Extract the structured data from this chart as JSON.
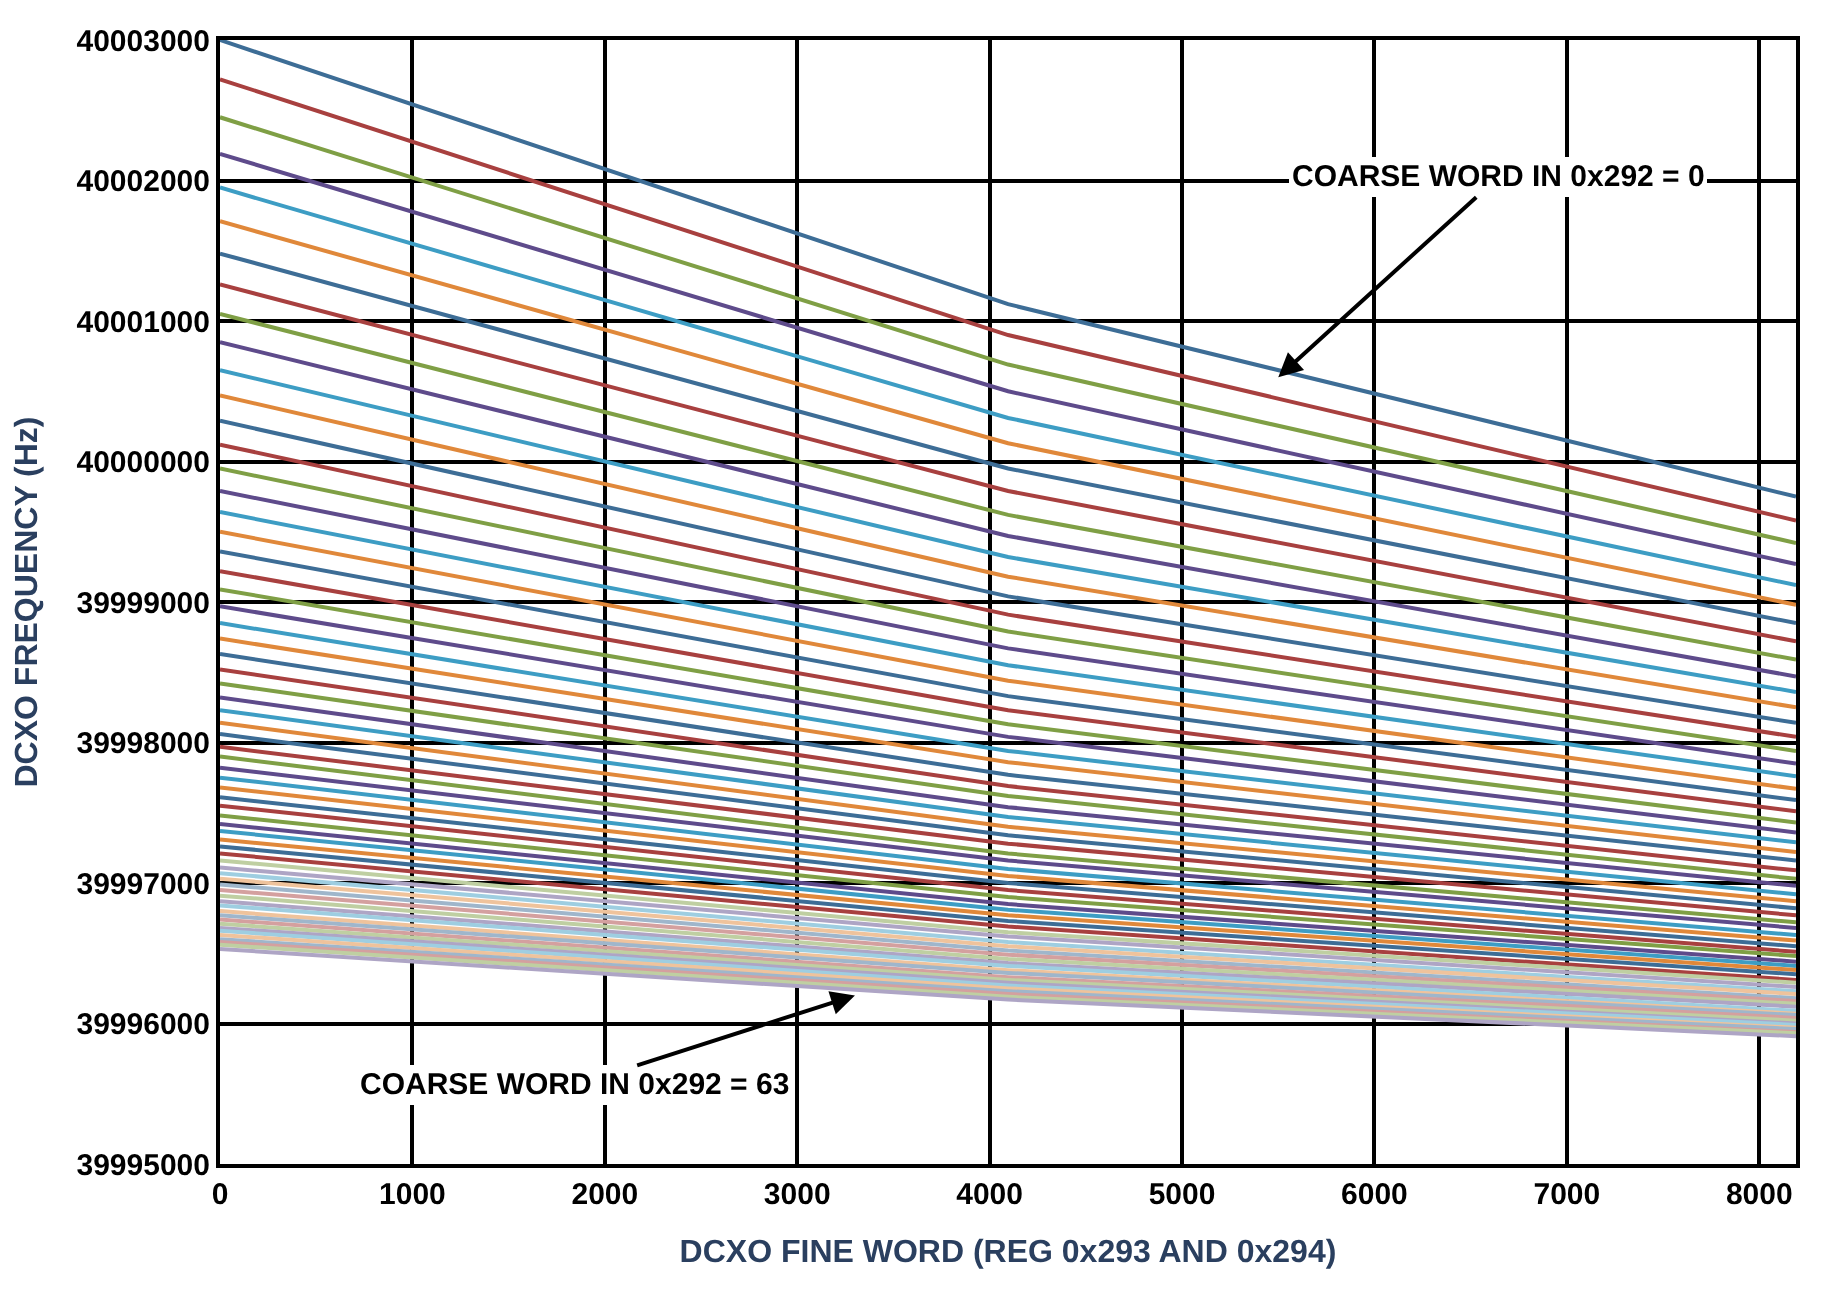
{
  "chart_data": {
    "type": "line",
    "xlabel": "DCXO FINE WORD (REG 0x293 AND 0x294)",
    "ylabel": "DCXO FREQUENCY (Hz)",
    "x": [
      0,
      4096,
      8191
    ],
    "xlim": [
      0,
      8191
    ],
    "xticks": [
      0,
      1000,
      2000,
      3000,
      4000,
      5000,
      6000,
      7000,
      8000
    ],
    "ylim": [
      39995000,
      40003000
    ],
    "yticks": [
      39995000,
      39996000,
      39997000,
      39998000,
      39999000,
      40000000,
      40001000,
      40002000,
      40003000
    ],
    "grid": true,
    "legend": false,
    "marker": "none",
    "line_style": "solid",
    "annotations": [
      {
        "text": "COARSE WORD IN 0x292 = 0",
        "x": 5500,
        "y": 40000600
      },
      {
        "text": "COARSE WORD IN 0x292 = 63",
        "x": 3300,
        "y": 39996200
      }
    ],
    "series": [
      {
        "color": "#3d6d96",
        "values": [
          40003000,
          40001120,
          39999750
        ]
      },
      {
        "color": "#a8403f",
        "values": [
          40002720,
          40000900,
          39999580
        ]
      },
      {
        "color": "#7f9f45",
        "values": [
          40002450,
          40000690,
          39999420
        ]
      },
      {
        "color": "#5e4b8b",
        "values": [
          40002190,
          40000500,
          39999270
        ]
      },
      {
        "color": "#3d9dc4",
        "values": [
          40001950,
          40000310,
          39999120
        ]
      },
      {
        "color": "#e0883a",
        "values": [
          40001710,
          40000130,
          39998980
        ]
      },
      {
        "color": "#3d6d96",
        "values": [
          40001480,
          39999950,
          39998850
        ]
      },
      {
        "color": "#a8403f",
        "values": [
          40001260,
          39999790,
          39998720
        ]
      },
      {
        "color": "#7f9f45",
        "values": [
          40001050,
          39999620,
          39998590
        ]
      },
      {
        "color": "#5e4b8b",
        "values": [
          40000850,
          39999470,
          39998470
        ]
      },
      {
        "color": "#3d9dc4",
        "values": [
          40000650,
          39999320,
          39998360
        ]
      },
      {
        "color": "#e0883a",
        "values": [
          40000470,
          39999180,
          39998250
        ]
      },
      {
        "color": "#3d6d96",
        "values": [
          40000290,
          39999040,
          39998140
        ]
      },
      {
        "color": "#a8403f",
        "values": [
          40000120,
          39998910,
          39998040
        ]
      },
      {
        "color": "#7f9f45",
        "values": [
          39999950,
          39998790,
          39997940
        ]
      },
      {
        "color": "#5e4b8b",
        "values": [
          39999790,
          39998670,
          39997850
        ]
      },
      {
        "color": "#3d9dc4",
        "values": [
          39999640,
          39998550,
          39997760
        ]
      },
      {
        "color": "#e0883a",
        "values": [
          39999500,
          39998440,
          39997670
        ]
      },
      {
        "color": "#3d6d96",
        "values": [
          39999360,
          39998330,
          39997590
        ]
      },
      {
        "color": "#a8403f",
        "values": [
          39999220,
          39998230,
          39997510
        ]
      },
      {
        "color": "#7f9f45",
        "values": [
          39999090,
          39998130,
          39997430
        ]
      },
      {
        "color": "#5e4b8b",
        "values": [
          39998970,
          39998040,
          39997360
        ]
      },
      {
        "color": "#3d9dc4",
        "values": [
          39998850,
          39997940,
          39997290
        ]
      },
      {
        "color": "#e0883a",
        "values": [
          39998740,
          39997860,
          39997220
        ]
      },
      {
        "color": "#3d6d96",
        "values": [
          39998630,
          39997770,
          39997160
        ]
      },
      {
        "color": "#a8403f",
        "values": [
          39998520,
          39997690,
          39997090
        ]
      },
      {
        "color": "#7f9f45",
        "values": [
          39998420,
          39997620,
          39997030
        ]
      },
      {
        "color": "#5e4b8b",
        "values": [
          39998320,
          39997540,
          39996980
        ]
      },
      {
        "color": "#3d9dc4",
        "values": [
          39998230,
          39997470,
          39996920
        ]
      },
      {
        "color": "#e0883a",
        "values": [
          39998140,
          39997400,
          39996870
        ]
      },
      {
        "color": "#3d6d96",
        "values": [
          39998060,
          39997340,
          39996820
        ]
      },
      {
        "color": "#a8403f",
        "values": [
          39997970,
          39997280,
          39996770
        ]
      },
      {
        "color": "#7f9f45",
        "values": [
          39997900,
          39997210,
          39996720
        ]
      },
      {
        "color": "#5e4b8b",
        "values": [
          39997820,
          39997160,
          39996680
        ]
      },
      {
        "color": "#3d9dc4",
        "values": [
          39997750,
          39997100,
          39996630
        ]
      },
      {
        "color": "#e0883a",
        "values": [
          39997680,
          39997050,
          39996590
        ]
      },
      {
        "color": "#3d6d96",
        "values": [
          39997610,
          39997000,
          39996550
        ]
      },
      {
        "color": "#a8403f",
        "values": [
          39997550,
          39996950,
          39996510
        ]
      },
      {
        "color": "#7f9f45",
        "values": [
          39997480,
          39996900,
          39996480
        ]
      },
      {
        "color": "#5e4b8b",
        "values": [
          39997420,
          39996850,
          39996440
        ]
      },
      {
        "color": "#3d9dc4",
        "values": [
          39997370,
          39996810,
          39996410
        ]
      },
      {
        "color": "#e0883a",
        "values": [
          39997310,
          39996770,
          39996380
        ]
      },
      {
        "color": "#3d6d96",
        "values": [
          39997260,
          39996730,
          39996350
        ]
      },
      {
        "color": "#a8403f",
        "values": [
          39997210,
          39996690,
          39996310
        ]
      },
      {
        "color": "#bfcfa2",
        "values": [
          39997160,
          39996650,
          39996290
        ]
      },
      {
        "color": "#aea5c5",
        "values": [
          39997110,
          39996620,
          39996260
        ]
      },
      {
        "color": "#9ecee1",
        "values": [
          39997070,
          39996580,
          39996230
        ]
      },
      {
        "color": "#efc39c",
        "values": [
          39997030,
          39996550,
          39996210
        ]
      },
      {
        "color": "#9fb6cb",
        "values": [
          39996990,
          39996520,
          39996180
        ]
      },
      {
        "color": "#d4a09f",
        "values": [
          39996950,
          39996490,
          39996160
        ]
      },
      {
        "color": "#bfcfa2",
        "values": [
          39996910,
          39996460,
          39996140
        ]
      },
      {
        "color": "#aea5c5",
        "values": [
          39996870,
          39996430,
          39996120
        ]
      },
      {
        "color": "#9ecee1",
        "values": [
          39996840,
          39996410,
          39996090
        ]
      },
      {
        "color": "#efc39c",
        "values": [
          39996800,
          39996380,
          39996070
        ]
      },
      {
        "color": "#9fb6cb",
        "values": [
          39996770,
          39996360,
          39996060
        ]
      },
      {
        "color": "#d4a09f",
        "values": [
          39996740,
          39996330,
          39996040
        ]
      },
      {
        "color": "#bfcfa2",
        "values": [
          39996710,
          39996310,
          39996020
        ]
      },
      {
        "color": "#aea5c5",
        "values": [
          39996680,
          39996290,
          39996000
        ]
      },
      {
        "color": "#9ecee1",
        "values": [
          39996660,
          39996270,
          39995990
        ]
      },
      {
        "color": "#efc39c",
        "values": [
          39996630,
          39996250,
          39995970
        ]
      },
      {
        "color": "#9fb6cb",
        "values": [
          39996600,
          39996230,
          39995960
        ]
      },
      {
        "color": "#d4a09f",
        "values": [
          39996580,
          39996210,
          39995940
        ]
      },
      {
        "color": "#bfcfa2",
        "values": [
          39996560,
          39996190,
          39995930
        ]
      },
      {
        "color": "#aea5c5",
        "values": [
          39996530,
          39996170,
          39995910
        ]
      }
    ]
  }
}
